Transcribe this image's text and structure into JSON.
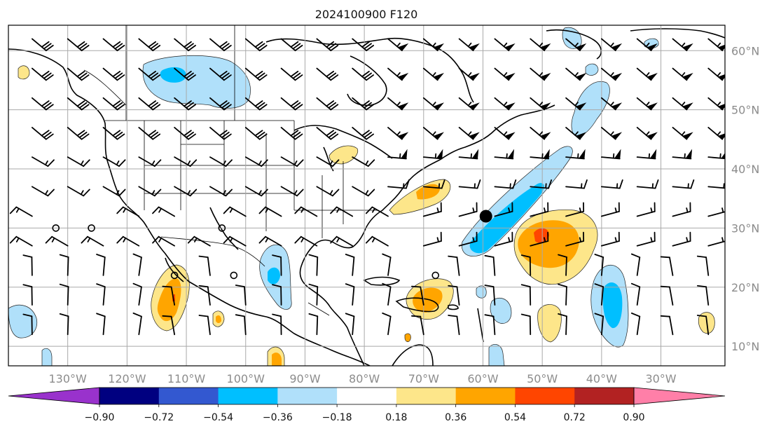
{
  "title": "2024100900 F120",
  "lon_labels": [
    "130°W",
    "120°W",
    "110°W",
    "100°W",
    "90°W",
    "80°W",
    "70°W",
    "60°W",
    "50°W",
    "40°W",
    "30°W"
  ],
  "lat_labels": [
    "60°N",
    "50°N",
    "40°N",
    "30°N",
    "20°N",
    "10°N"
  ],
  "colorbar": {
    "colors": [
      "#9932cc",
      "#000080",
      "#3358d0",
      "#00bfff",
      "#b0e0fa",
      "#ffffff",
      "#fde68a",
      "#ffa500",
      "#ff4500",
      "#b22222",
      "#ff7fa8"
    ],
    "labels": [
      "−0.90",
      "−0.72",
      "−0.54",
      "−0.36",
      "−0.18",
      "0.18",
      "0.36",
      "0.54",
      "0.72",
      "0.90"
    ]
  },
  "marker": {
    "name": "black-dot",
    "lon": -59.5,
    "lat": 32.0
  }
}
